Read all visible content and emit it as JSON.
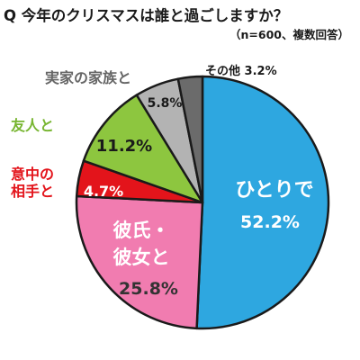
{
  "title": "Q 今年のクリスマスは誰と過ごしますか？",
  "subtitle": "（n=600、複数回答）",
  "colors": {
    "alone": "#2ea7e0",
    "partner": "#f17cb0",
    "lover": "#e3141b",
    "friend": "#8dc63f",
    "family": "#b3b3b3",
    "other": "#6b6b6b"
  },
  "chart_data": {
    "type": "pie",
    "title": "Q 今年のクリスマスは誰と過ごしますか？",
    "subtitle": "（n=600、複数回答）",
    "unit": "%",
    "slices": [
      {
        "label": "ひとりで",
        "value": 52.2,
        "value_text": "52.2%"
      },
      {
        "label": "彼氏・彼女と",
        "value": 25.8,
        "value_text": "25.8%"
      },
      {
        "label": "意中の相手と",
        "value": 4.7,
        "value_text": "4.7%"
      },
      {
        "label": "友人と",
        "value": 11.2,
        "value_text": "11.2%"
      },
      {
        "label": "実家の家族と",
        "value": 5.8,
        "value_text": "5.8%"
      },
      {
        "label": "その他",
        "value": 3.2,
        "value_text": "3.2%"
      }
    ]
  }
}
